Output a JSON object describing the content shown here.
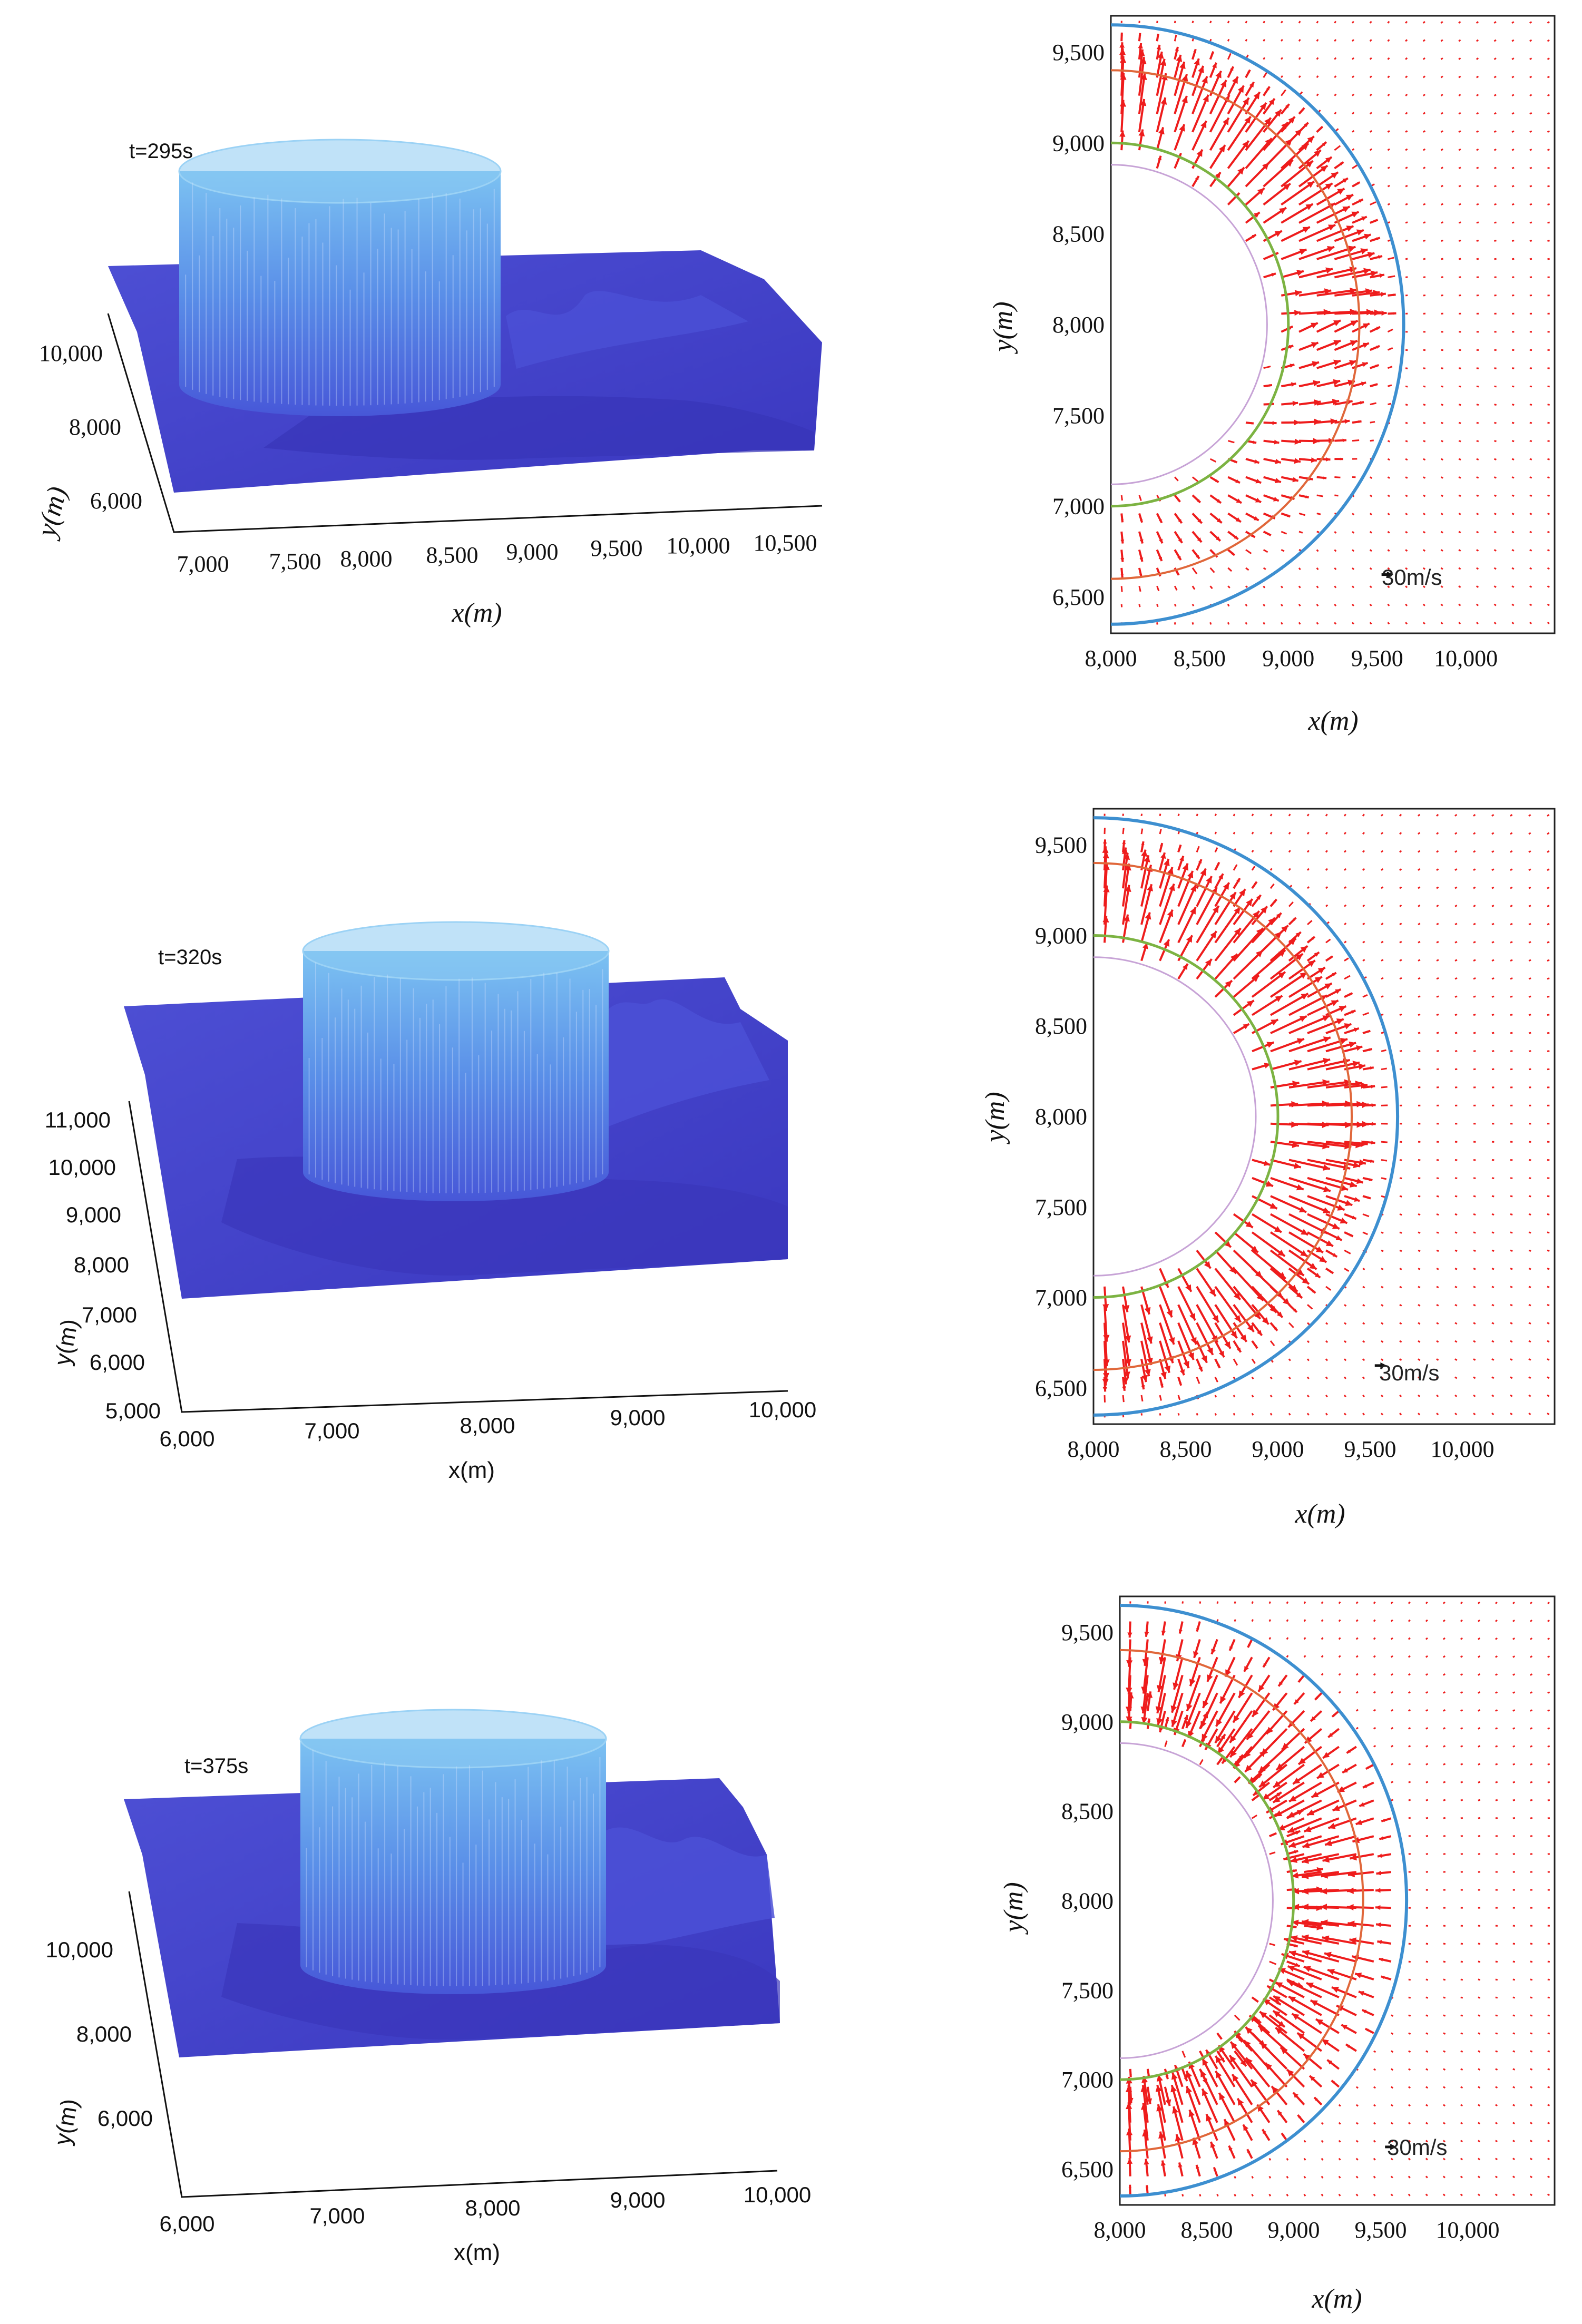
{
  "colors": {
    "surface_dark": "#3f3dc4",
    "surface_mid": "#4a4fd6",
    "cylinder_top": "#6fb4ee",
    "cylinder_bottom": "#4a68e0",
    "arrow": "#ee1c1c",
    "circle_blue": "#3d8fd0",
    "circle_orange": "#e0673a",
    "circle_green": "#7cb342",
    "circle_purple": "#c7a3d6"
  },
  "chart_data": [
    {
      "type": "surface3d",
      "time_label": "t=295s",
      "xlabel": "x(m)",
      "ylabel": "y(m)",
      "x_ticks": [
        "7,000",
        "7,500",
        "8,000",
        "8,500",
        "9,000",
        "9,500",
        "10,000",
        "10,500"
      ],
      "y_ticks": [
        "10,000",
        "8,000",
        "6,000"
      ]
    },
    {
      "type": "quiver",
      "xlabel": "x(m)",
      "ylabel": "y(m)",
      "xlim": [
        8000,
        10500
      ],
      "ylim": [
        6300,
        9700
      ],
      "x_ticks": [
        "8,000",
        "8,500",
        "9,000",
        "9,500",
        "10,000"
      ],
      "y_ticks": [
        "9,500",
        "9,000",
        "8,500",
        "8,000",
        "7,500",
        "7,000",
        "6,500"
      ],
      "scale_label": "30m/s",
      "center": [
        8000,
        8000
      ],
      "radii": [
        1650,
        1400,
        1000,
        880
      ],
      "peak_radius": 1200,
      "peak_speed": 38,
      "mode": "outward-top"
    },
    {
      "type": "surface3d",
      "time_label": "t=320s",
      "xlabel": "x(m)",
      "ylabel": "y(m)",
      "x_ticks": [
        "6,000",
        "7,000",
        "8,000",
        "9,000",
        "10,000"
      ],
      "y_ticks": [
        "11,000",
        "10,000",
        "9,000",
        "8,000",
        "7,000",
        "6,000",
        "5,000"
      ]
    },
    {
      "type": "quiver",
      "xlabel": "x(m)",
      "ylabel": "y(m)",
      "xlim": [
        8000,
        10500
      ],
      "ylim": [
        6300,
        9700
      ],
      "x_ticks": [
        "8,000",
        "8,500",
        "9,000",
        "9,500",
        "10,000"
      ],
      "y_ticks": [
        "9,500",
        "9,000",
        "8,500",
        "8,000",
        "7,500",
        "7,000",
        "6,500"
      ],
      "scale_label": "30m/s",
      "center": [
        8000,
        8000
      ],
      "radii": [
        1650,
        1400,
        1000,
        880
      ],
      "peak_radius": 1150,
      "peak_speed": 40,
      "mode": "outward"
    },
    {
      "type": "surface3d",
      "time_label": "t=375s",
      "xlabel": "x(m)",
      "ylabel": "y(m)",
      "x_ticks": [
        "6,000",
        "7,000",
        "8,000",
        "9,000",
        "10,000"
      ],
      "y_ticks": [
        "10,000",
        "8,000",
        "6,000"
      ]
    },
    {
      "type": "quiver",
      "xlabel": "x(m)",
      "ylabel": "y(m)",
      "xlim": [
        8000,
        10500
      ],
      "ylim": [
        6300,
        9700
      ],
      "x_ticks": [
        "8,000",
        "8,500",
        "9,000",
        "9,500",
        "10,000"
      ],
      "y_ticks": [
        "9,500",
        "9,000",
        "8,500",
        "8,000",
        "7,500",
        "7,000",
        "6,500"
      ],
      "scale_label": "30m/s",
      "center": [
        8000,
        8000
      ],
      "radii": [
        1650,
        1400,
        1000,
        880
      ],
      "peak_radius": 1300,
      "peak_speed": 36,
      "mode": "inward"
    }
  ]
}
